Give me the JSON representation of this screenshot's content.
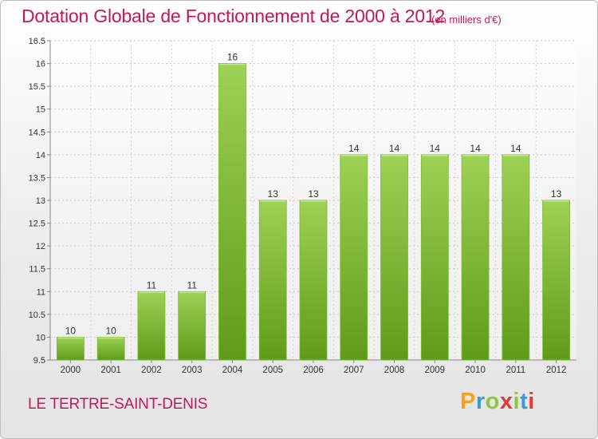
{
  "header": {
    "title": "Dotation Globale de Fonctionnement de 2000 à 2012",
    "unit": "(en milliers d'€)"
  },
  "footer": {
    "commune": "LE TERTRE-SAINT-DENIS",
    "brand": "Proxiti"
  },
  "colors": {
    "accent": "#c2185b",
    "bar_light": "#9ed155",
    "bar_dark": "#5f9b18",
    "brand_letters": [
      "#f4a21d",
      "#3a9ad9",
      "#8dc63f",
      "#e53935",
      "#8dc63f",
      "#3a9ad9",
      "#e53935"
    ]
  },
  "chart_data": {
    "type": "bar",
    "categories": [
      "2000",
      "2001",
      "2002",
      "2003",
      "2004",
      "2005",
      "2006",
      "2007",
      "2008",
      "2009",
      "2010",
      "2011",
      "2012"
    ],
    "values": [
      10,
      10,
      11,
      11,
      16,
      13,
      13,
      14,
      14,
      14,
      14,
      14,
      13
    ],
    "labels": [
      "10",
      "10",
      "11",
      "11",
      "16",
      "13",
      "13",
      "14",
      "14",
      "14",
      "14",
      "14",
      "13"
    ],
    "ylim": [
      9.5,
      16.5
    ],
    "yticks": [
      "9.5",
      "10",
      "10.5",
      "11",
      "11.5",
      "12",
      "12.5",
      "13",
      "13.5",
      "14",
      "14.5",
      "15",
      "15.5",
      "16",
      "16.5"
    ],
    "grid": true
  }
}
